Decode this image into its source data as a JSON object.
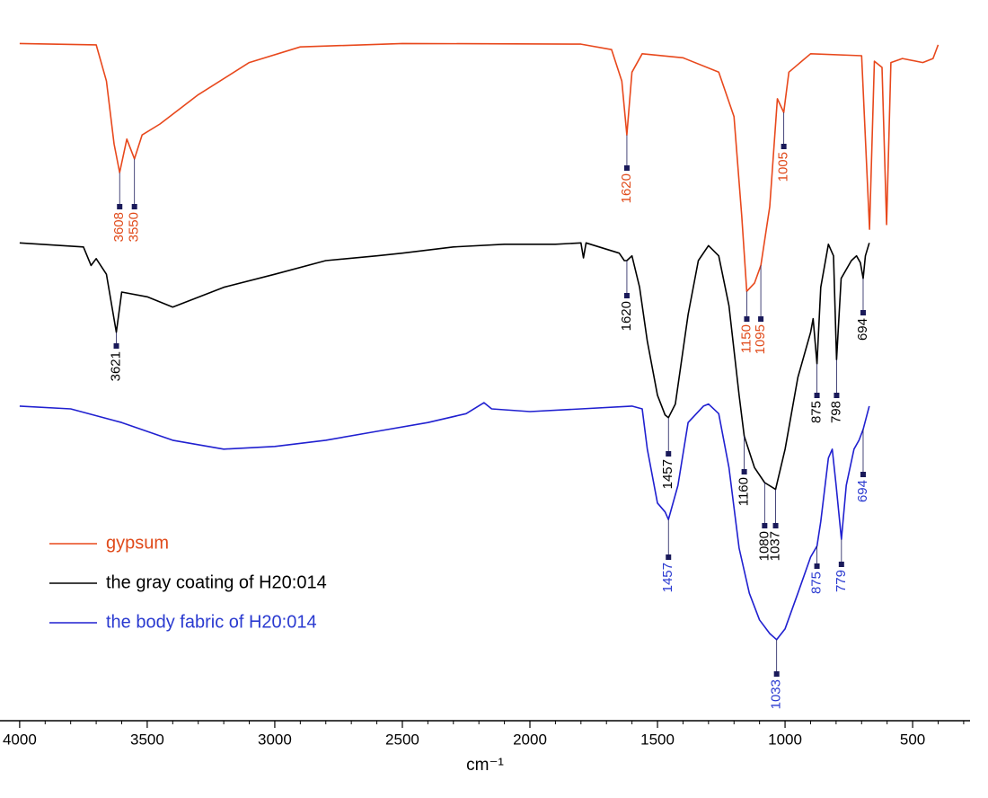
{
  "chart_data": {
    "type": "line",
    "xlabel": "cm⁻¹",
    "xlim": [
      4077,
      275
    ],
    "xticks": [
      4000,
      3500,
      3000,
      2500,
      2000,
      1500,
      1000,
      500
    ],
    "xminorticks": [
      3900,
      3800,
      3700,
      3600,
      3400,
      3300,
      3200,
      3100,
      2900,
      2800,
      2700,
      2600,
      2400,
      2300,
      2200,
      2100,
      1900,
      1800,
      1700,
      1600,
      1400,
      1300,
      1200,
      1100,
      900,
      800,
      700,
      600,
      400,
      300
    ],
    "ylim": [
      0,
      100
    ],
    "series": [
      {
        "name": "gypsum",
        "color": "#e8481c",
        "label_color": "#e04a1a",
        "x": [
          4000,
          3700,
          3660,
          3630,
          3608,
          3580,
          3550,
          3520,
          3450,
          3300,
          3100,
          2900,
          2500,
          1800,
          1680,
          1640,
          1620,
          1600,
          1560,
          1400,
          1260,
          1200,
          1170,
          1150,
          1120,
          1095,
          1060,
          1030,
          1005,
          985,
          900,
          700,
          669,
          650,
          620,
          602,
          585,
          540,
          460,
          420,
          400
        ],
        "values": [
          98.9,
          98.7,
          93.4,
          84.2,
          80.0,
          84.9,
          82.0,
          85.5,
          87.1,
          91.4,
          96.1,
          98.4,
          98.9,
          98.8,
          98.0,
          93.4,
          85.5,
          94.7,
          97.4,
          96.8,
          94.7,
          88.2,
          73.7,
          62.6,
          63.8,
          66.4,
          75.0,
          90.8,
          88.8,
          94.7,
          97.4,
          97.1,
          71.7,
          96.3,
          95.4,
          72.4,
          96.1,
          96.7,
          96.1,
          96.7,
          98.7
        ],
        "peaks": [
          3608,
          3550,
          1620,
          1150,
          1095,
          1005
        ]
      },
      {
        "name": "the gray coating of H20:014",
        "color": "#000000",
        "label_color": "#000000",
        "x": [
          4000,
          3750,
          3720,
          3700,
          3660,
          3621,
          3600,
          3500,
          3400,
          3200,
          3000,
          2800,
          2600,
          2500,
          2300,
          2100,
          1900,
          1800,
          1790,
          1780,
          1650,
          1630,
          1620,
          1600,
          1570,
          1540,
          1500,
          1470,
          1457,
          1430,
          1380,
          1340,
          1300,
          1260,
          1220,
          1180,
          1160,
          1120,
          1080,
          1037,
          1000,
          950,
          900,
          890,
          875,
          860,
          830,
          810,
          798,
          780,
          740,
          720,
          705,
          694,
          685,
          670
        ],
        "values": [
          69.7,
          69.1,
          66.4,
          67.4,
          65.1,
          56.6,
          62.5,
          61.8,
          60.3,
          63.2,
          65.1,
          67.1,
          67.8,
          68.2,
          69.1,
          69.5,
          69.5,
          69.7,
          67.5,
          69.7,
          68.2,
          67.1,
          67.1,
          67.8,
          63.2,
          55.3,
          47.4,
          44.5,
          44.1,
          46.1,
          59.2,
          67.1,
          69.3,
          67.8,
          60.5,
          47.4,
          41.4,
          36.8,
          34.6,
          33.6,
          39.5,
          50.0,
          56.6,
          58.6,
          52.0,
          63.2,
          69.5,
          67.8,
          52.6,
          64.5,
          67.1,
          67.8,
          66.8,
          64.5,
          67.8,
          69.7
        ],
        "peaks": [
          3621,
          1620,
          1457,
          1160,
          1080,
          1037,
          875,
          798,
          694
        ]
      },
      {
        "name": "the body fabric of H20:014",
        "color": "#2020d0",
        "label_color": "#2a3ad0",
        "x": [
          4000,
          3800,
          3600,
          3400,
          3200,
          3000,
          2800,
          2600,
          2400,
          2250,
          2180,
          2150,
          2000,
          1800,
          1600,
          1560,
          1540,
          1500,
          1470,
          1457,
          1420,
          1380,
          1320,
          1300,
          1260,
          1220,
          1180,
          1140,
          1100,
          1060,
          1033,
          1000,
          950,
          900,
          875,
          860,
          830,
          815,
          800,
          779,
          760,
          730,
          710,
          694,
          670
        ],
        "values": [
          45.8,
          45.4,
          43.4,
          40.8,
          39.5,
          39.9,
          40.8,
          42.1,
          43.4,
          44.7,
          46.3,
          45.4,
          45.0,
          45.4,
          45.8,
          45.4,
          39.5,
          31.6,
          30.3,
          29.2,
          34.2,
          43.4,
          45.8,
          46.1,
          44.7,
          36.8,
          25.0,
          18.4,
          14.5,
          12.5,
          11.6,
          13.2,
          18.4,
          23.7,
          25.3,
          28.9,
          38.2,
          39.5,
          34.2,
          26.3,
          34.2,
          39.5,
          40.8,
          42.4,
          45.8
        ],
        "peaks": [
          1457,
          1033,
          875,
          779,
          694
        ]
      }
    ]
  }
}
